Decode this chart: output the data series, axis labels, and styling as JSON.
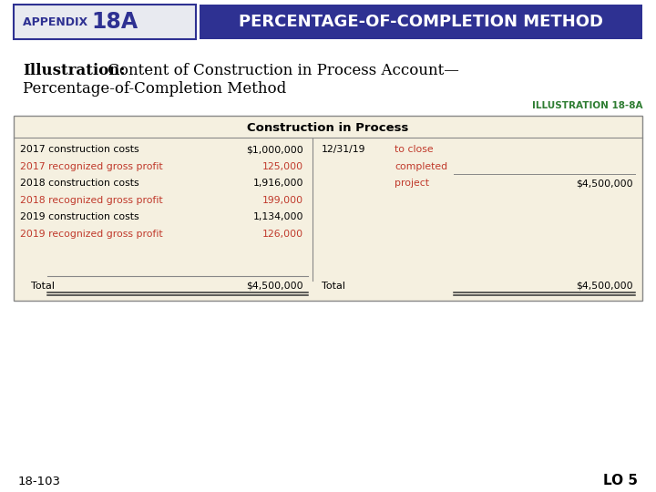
{
  "bg_color": "#ffffff",
  "header_left_bg": "#e8eaf0",
  "header_left_border": "#2e3192",
  "header_right_bg": "#2e3192",
  "header_left_text_appendix": "APPENDIX ",
  "header_left_text_18A": "18A",
  "header_right_text": "PERCENTAGE-OF-COMPLETION METHOD",
  "illustration_bold": "Illustration:",
  "illustration_normal": " Content of Construction in Process Account—",
  "illustration_line2": "Percentage-of-Completion Method",
  "illus_label": "ILLUSTRATION 18-8A",
  "illus_label_color": "#2e7d32",
  "table_bg": "#f5f0e0",
  "table_border": "#888888",
  "table_header": "Construction in Process",
  "left_rows": [
    {
      "text": "2017 construction costs",
      "value": "$1,000,000",
      "color": "#000000"
    },
    {
      "text": "2017 recognized gross profit",
      "value": "125,000",
      "color": "#c0392b"
    },
    {
      "text": "2018 construction costs",
      "value": "1,916,000",
      "color": "#000000"
    },
    {
      "text": "2018 recognized gross profit",
      "value": "199,000",
      "color": "#c0392b"
    },
    {
      "text": "2019 construction costs",
      "value": "1,134,000",
      "color": "#000000"
    },
    {
      "text": "2019 recognized gross profit",
      "value": "126,000",
      "color": "#c0392b"
    }
  ],
  "left_total_label": "Total",
  "left_total_value": "$4,500,000",
  "right_date": "12/31/19",
  "right_desc1": "to close",
  "right_desc2": "completed",
  "right_desc3": "project",
  "right_desc_color": "#c0392b",
  "right_value": "$4,500,000",
  "right_total_label": "Total",
  "right_total_value": "$4,500,000",
  "footer_left": "18-103",
  "footer_right": "LO 5"
}
